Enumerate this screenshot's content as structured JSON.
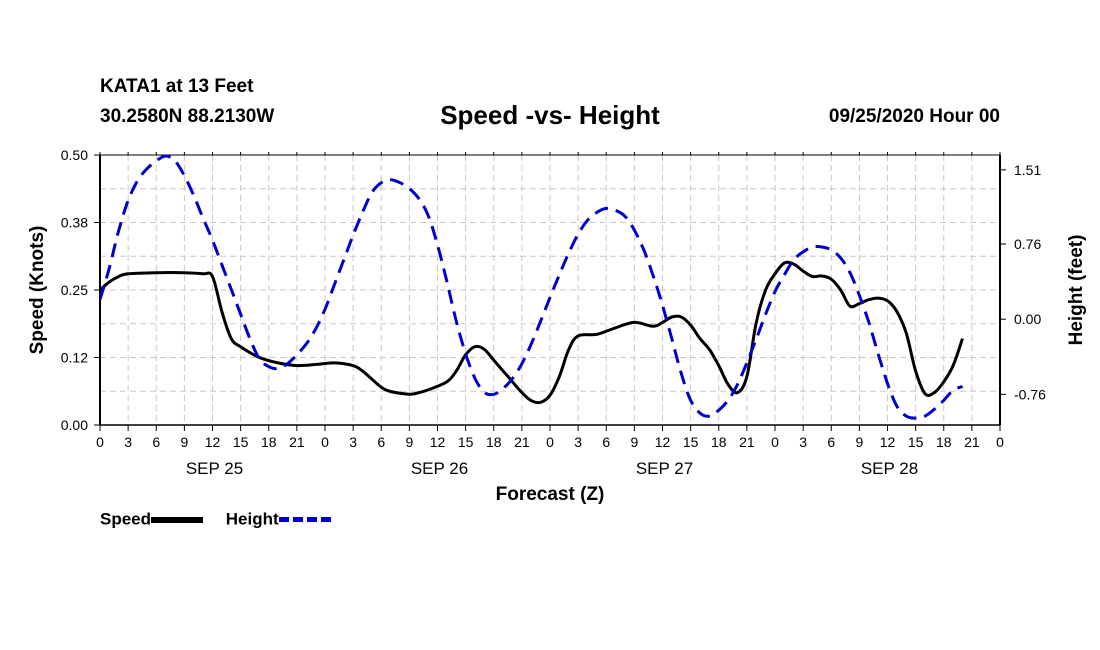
{
  "header": {
    "station": "KATA1 at 13 Feet",
    "coords": "30.2580N 88.2130W",
    "title": "Speed -vs- Height",
    "datetime": "09/25/2020 Hour 00"
  },
  "colors": {
    "speed": "#000000",
    "height": "#0000cc",
    "grid": "#c8c8c8"
  },
  "legend": {
    "speed_label": "Speed",
    "height_label": "Height"
  },
  "chart_data": {
    "type": "line",
    "title": "Speed -vs- Height",
    "xlabel": "Forecast (Z)",
    "ylabel": "Speed (Knots)",
    "y2label": "Height (feet)",
    "x_ticks": [
      "0",
      "3",
      "6",
      "9",
      "12",
      "15",
      "18",
      "21",
      "0",
      "3",
      "6",
      "9",
      "12",
      "15",
      "18",
      "21",
      "0",
      "3",
      "6",
      "9",
      "12",
      "15",
      "18",
      "21",
      "0",
      "3",
      "6",
      "9",
      "12",
      "15",
      "18",
      "21",
      "0"
    ],
    "day_labels": [
      {
        "label": "SEP 25",
        "hour": 12
      },
      {
        "label": "SEP 26",
        "hour": 36
      },
      {
        "label": "SEP 27",
        "hour": 60
      },
      {
        "label": "SEP 28",
        "hour": 84
      }
    ],
    "xlim": [
      0,
      96
    ],
    "ylim": [
      0,
      0.5
    ],
    "y_ticks": [
      "0.00",
      "0.12",
      "0.25",
      "0.38",
      "0.50"
    ],
    "y2lim": [
      -1.07,
      1.66
    ],
    "y2_ticks": [
      "-0.76",
      "0.00",
      "0.76",
      "1.51"
    ],
    "legend": "bottom-left",
    "grid": true,
    "series": [
      {
        "name": "Speed",
        "axis": "left",
        "style": "solid",
        "points": [
          [
            0,
            0.25
          ],
          [
            1,
            0.265
          ],
          [
            2,
            0.275
          ],
          [
            3,
            0.28
          ],
          [
            6,
            0.282
          ],
          [
            9,
            0.282
          ],
          [
            11,
            0.28
          ],
          [
            12,
            0.275
          ],
          [
            13,
            0.21
          ],
          [
            14,
            0.16
          ],
          [
            15,
            0.145
          ],
          [
            17,
            0.125
          ],
          [
            19,
            0.115
          ],
          [
            21,
            0.11
          ],
          [
            23,
            0.112
          ],
          [
            25,
            0.115
          ],
          [
            27,
            0.11
          ],
          [
            28,
            0.1
          ],
          [
            29,
            0.085
          ],
          [
            30,
            0.07
          ],
          [
            31,
            0.062
          ],
          [
            33,
            0.057
          ],
          [
            34,
            0.06
          ],
          [
            35,
            0.065
          ],
          [
            37,
            0.08
          ],
          [
            38,
            0.1
          ],
          [
            39,
            0.13
          ],
          [
            40,
            0.145
          ],
          [
            41,
            0.14
          ],
          [
            42,
            0.12
          ],
          [
            43,
            0.1
          ],
          [
            44,
            0.08
          ],
          [
            45,
            0.06
          ],
          [
            46,
            0.045
          ],
          [
            47,
            0.042
          ],
          [
            48,
            0.055
          ],
          [
            49,
            0.09
          ],
          [
            50,
            0.14
          ],
          [
            51,
            0.165
          ],
          [
            53,
            0.168
          ],
          [
            55,
            0.18
          ],
          [
            57,
            0.19
          ],
          [
            59,
            0.183
          ],
          [
            60,
            0.19
          ],
          [
            61,
            0.2
          ],
          [
            62,
            0.2
          ],
          [
            63,
            0.185
          ],
          [
            64,
            0.16
          ],
          [
            65,
            0.14
          ],
          [
            66,
            0.11
          ],
          [
            67,
            0.075
          ],
          [
            68,
            0.06
          ],
          [
            69,
            0.09
          ],
          [
            70,
            0.19
          ],
          [
            71,
            0.25
          ],
          [
            72,
            0.28
          ],
          [
            73,
            0.3
          ],
          [
            74,
            0.298
          ],
          [
            75,
            0.285
          ],
          [
            76,
            0.275
          ],
          [
            77,
            0.276
          ],
          [
            78,
            0.27
          ],
          [
            79,
            0.25
          ],
          [
            80,
            0.22
          ],
          [
            81,
            0.225
          ],
          [
            82,
            0.232
          ],
          [
            83,
            0.235
          ],
          [
            84,
            0.23
          ],
          [
            85,
            0.21
          ],
          [
            86,
            0.17
          ],
          [
            87,
            0.1
          ],
          [
            88,
            0.058
          ],
          [
            89,
            0.06
          ],
          [
            90,
            0.08
          ],
          [
            91,
            0.11
          ],
          [
            92,
            0.16
          ]
        ]
      },
      {
        "name": "Height",
        "axis": "right",
        "style": "dashed",
        "points": [
          [
            0,
            0.2
          ],
          [
            1,
            0.52
          ],
          [
            2,
            0.9
          ],
          [
            3,
            1.2
          ],
          [
            4,
            1.4
          ],
          [
            5,
            1.52
          ],
          [
            6,
            1.6
          ],
          [
            7,
            1.65
          ],
          [
            8,
            1.6
          ],
          [
            9,
            1.45
          ],
          [
            10,
            1.25
          ],
          [
            11,
            1.02
          ],
          [
            12,
            0.8
          ],
          [
            13,
            0.55
          ],
          [
            14,
            0.3
          ],
          [
            15,
            0.05
          ],
          [
            16,
            -0.2
          ],
          [
            17,
            -0.4
          ],
          [
            18,
            -0.48
          ],
          [
            19,
            -0.5
          ],
          [
            20,
            -0.45
          ],
          [
            21,
            -0.36
          ],
          [
            22,
            -0.25
          ],
          [
            23,
            -0.1
          ],
          [
            24,
            0.1
          ],
          [
            25,
            0.35
          ],
          [
            26,
            0.6
          ],
          [
            27,
            0.85
          ],
          [
            28,
            1.08
          ],
          [
            29,
            1.28
          ],
          [
            30,
            1.38
          ],
          [
            31,
            1.41
          ],
          [
            32,
            1.38
          ],
          [
            33,
            1.32
          ],
          [
            34,
            1.22
          ],
          [
            35,
            1.05
          ],
          [
            36,
            0.75
          ],
          [
            37,
            0.38
          ],
          [
            38,
            -0.02
          ],
          [
            39,
            -0.35
          ],
          [
            40,
            -0.6
          ],
          [
            41,
            -0.74
          ],
          [
            42,
            -0.76
          ],
          [
            43,
            -0.7
          ],
          [
            44,
            -0.6
          ],
          [
            45,
            -0.45
          ],
          [
            46,
            -0.25
          ],
          [
            47,
            -0.02
          ],
          [
            48,
            0.22
          ],
          [
            49,
            0.45
          ],
          [
            50,
            0.67
          ],
          [
            51,
            0.86
          ],
          [
            52,
            1.0
          ],
          [
            53,
            1.08
          ],
          [
            54,
            1.12
          ],
          [
            55,
            1.1
          ],
          [
            56,
            1.04
          ],
          [
            57,
            0.9
          ],
          [
            58,
            0.7
          ],
          [
            59,
            0.44
          ],
          [
            60,
            0.14
          ],
          [
            61,
            -0.2
          ],
          [
            62,
            -0.55
          ],
          [
            63,
            -0.82
          ],
          [
            64,
            -0.95
          ],
          [
            65,
            -0.98
          ],
          [
            66,
            -0.92
          ],
          [
            67,
            -0.82
          ],
          [
            68,
            -0.66
          ],
          [
            69,
            -0.44
          ],
          [
            70,
            -0.2
          ],
          [
            71,
            0.05
          ],
          [
            72,
            0.28
          ],
          [
            73,
            0.45
          ],
          [
            74,
            0.6
          ],
          [
            75,
            0.68
          ],
          [
            76,
            0.73
          ],
          [
            77,
            0.73
          ],
          [
            78,
            0.7
          ],
          [
            79,
            0.62
          ],
          [
            80,
            0.47
          ],
          [
            81,
            0.24
          ],
          [
            82,
            -0.03
          ],
          [
            83,
            -0.35
          ],
          [
            84,
            -0.65
          ],
          [
            85,
            -0.88
          ],
          [
            86,
            -0.98
          ],
          [
            87,
            -1.0
          ],
          [
            88,
            -0.98
          ],
          [
            89,
            -0.91
          ],
          [
            90,
            -0.82
          ],
          [
            91,
            -0.72
          ],
          [
            92,
            -0.68
          ]
        ]
      }
    ]
  }
}
